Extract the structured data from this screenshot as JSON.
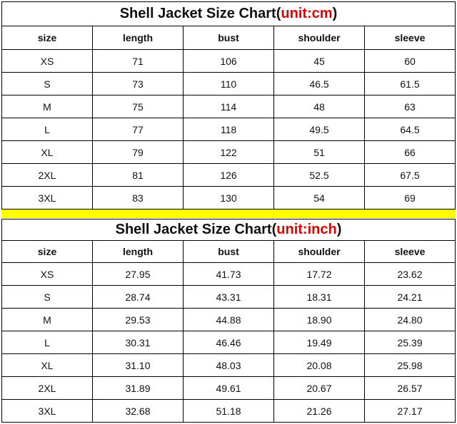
{
  "tables": [
    {
      "title_prefix": "Shell Jacket Size Chart(",
      "unit": "unit:cm",
      "title_suffix": ")",
      "header": [
        "size",
        "length",
        "bust",
        "shoulder",
        "sleeve"
      ],
      "rows": [
        [
          "XS",
          "71",
          "106",
          "45",
          "60"
        ],
        [
          "S",
          "73",
          "110",
          "46.5",
          "61.5"
        ],
        [
          "M",
          "75",
          "114",
          "48",
          "63"
        ],
        [
          "L",
          "77",
          "118",
          "49.5",
          "64.5"
        ],
        [
          "XL",
          "79",
          "122",
          "51",
          "66"
        ],
        [
          "2XL",
          "81",
          "126",
          "52.5",
          "67.5"
        ],
        [
          "3XL",
          "83",
          "130",
          "54",
          "69"
        ]
      ]
    },
    {
      "title_prefix": "Shell Jacket Size Chart(",
      "unit": "unit:inch",
      "title_suffix": ")",
      "header": [
        "size",
        "length",
        "bust",
        "shoulder",
        "sleeve"
      ],
      "rows": [
        [
          "XS",
          "27.95",
          "41.73",
          "17.72",
          "23.62"
        ],
        [
          "S",
          "28.74",
          "43.31",
          "18.31",
          "24.21"
        ],
        [
          "M",
          "29.53",
          "44.88",
          "18.90",
          "24.80"
        ],
        [
          "L",
          "30.31",
          "46.46",
          "19.49",
          "25.39"
        ],
        [
          "XL",
          "31.10",
          "48.03",
          "20.08",
          "25.98"
        ],
        [
          "2XL",
          "31.89",
          "49.61",
          "20.67",
          "26.57"
        ],
        [
          "3XL",
          "32.68",
          "51.18",
          "21.26",
          "27.17"
        ]
      ]
    }
  ]
}
